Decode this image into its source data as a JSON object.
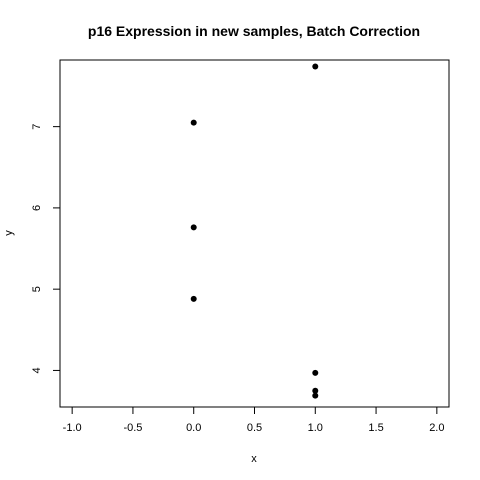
{
  "chart_data": {
    "type": "scatter",
    "title": "p16 Expression in new samples, Batch Correction",
    "xlabel": "x",
    "ylabel": "y",
    "xlim": [
      -1.1,
      2.1
    ],
    "ylim": [
      3.55,
      7.82
    ],
    "xticks": [
      -1.0,
      -0.5,
      0.0,
      0.5,
      1.0,
      1.5,
      2.0
    ],
    "xtick_labels": [
      "-1.0",
      "-0.5",
      "0.0",
      "0.5",
      "1.0",
      "1.5",
      "2.0"
    ],
    "yticks": [
      4,
      5,
      6,
      7
    ],
    "ytick_labels": [
      "4",
      "5",
      "6",
      "7"
    ],
    "grid": false,
    "points": [
      {
        "x": 0,
        "y": 7.05
      },
      {
        "x": 0,
        "y": 5.76
      },
      {
        "x": 0,
        "y": 4.88
      },
      {
        "x": 1,
        "y": 7.74
      },
      {
        "x": 1,
        "y": 3.97
      },
      {
        "x": 1,
        "y": 3.75
      },
      {
        "x": 1,
        "y": 3.69
      }
    ]
  }
}
